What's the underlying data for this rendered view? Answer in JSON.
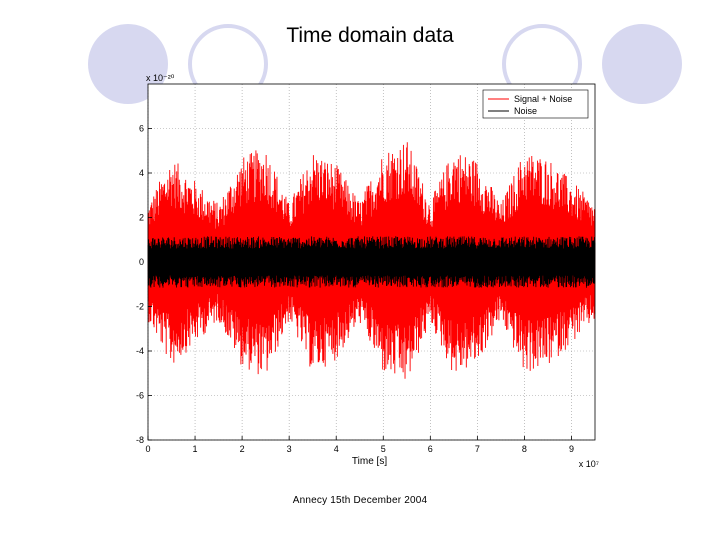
{
  "slide": {
    "title": "Time domain data",
    "footer": "Annecy 15th December 2004"
  },
  "colors": {
    "decoration": "#d7d8f0",
    "signal": "#ff0000",
    "noise": "#000000"
  },
  "chart_data": {
    "type": "line",
    "title": "",
    "xlabel": "Time [s]",
    "ylabel": "",
    "x_multiplier": "x 10⁷",
    "y_multiplier": "x 10⁻²⁰",
    "xlim": [
      0,
      9.5
    ],
    "ylim": [
      -8,
      8
    ],
    "x_ticks": [
      0,
      1,
      2,
      3,
      4,
      5,
      6,
      7,
      8,
      9
    ],
    "y_ticks": [
      -8,
      -6,
      -4,
      -2,
      0,
      2,
      4,
      6
    ],
    "grid": true,
    "legend_position": "top-right",
    "series": [
      {
        "name": "Signal + Noise",
        "color": "#ff0000",
        "x": [
          0,
          0.5,
          1.0,
          1.5,
          2.0,
          2.5,
          3.0,
          3.5,
          4.0,
          4.5,
          5.0,
          5.5,
          6.0,
          6.5,
          7.0,
          7.5,
          8.0,
          8.5,
          9.0,
          9.5
        ],
        "y_upper": [
          2.5,
          4.5,
          3.5,
          2.5,
          4.5,
          5.0,
          2.5,
          4.8,
          4.2,
          2.6,
          4.8,
          5.3,
          2.6,
          4.9,
          4.4,
          2.5,
          4.8,
          4.5,
          3.5,
          2.5
        ],
        "y_lower": [
          -2.5,
          -4.5,
          -3.5,
          -2.5,
          -4.5,
          -5.0,
          -2.5,
          -4.8,
          -4.2,
          -2.6,
          -4.8,
          -5.3,
          -2.6,
          -4.9,
          -4.4,
          -2.5,
          -4.8,
          -4.5,
          -3.5,
          -2.5
        ]
      },
      {
        "name": "Noise",
        "color": "#000000",
        "x": [
          0,
          9.5
        ],
        "y_upper": [
          1.1,
          1.1
        ],
        "y_lower": [
          -1.1,
          -1.1
        ]
      }
    ]
  }
}
